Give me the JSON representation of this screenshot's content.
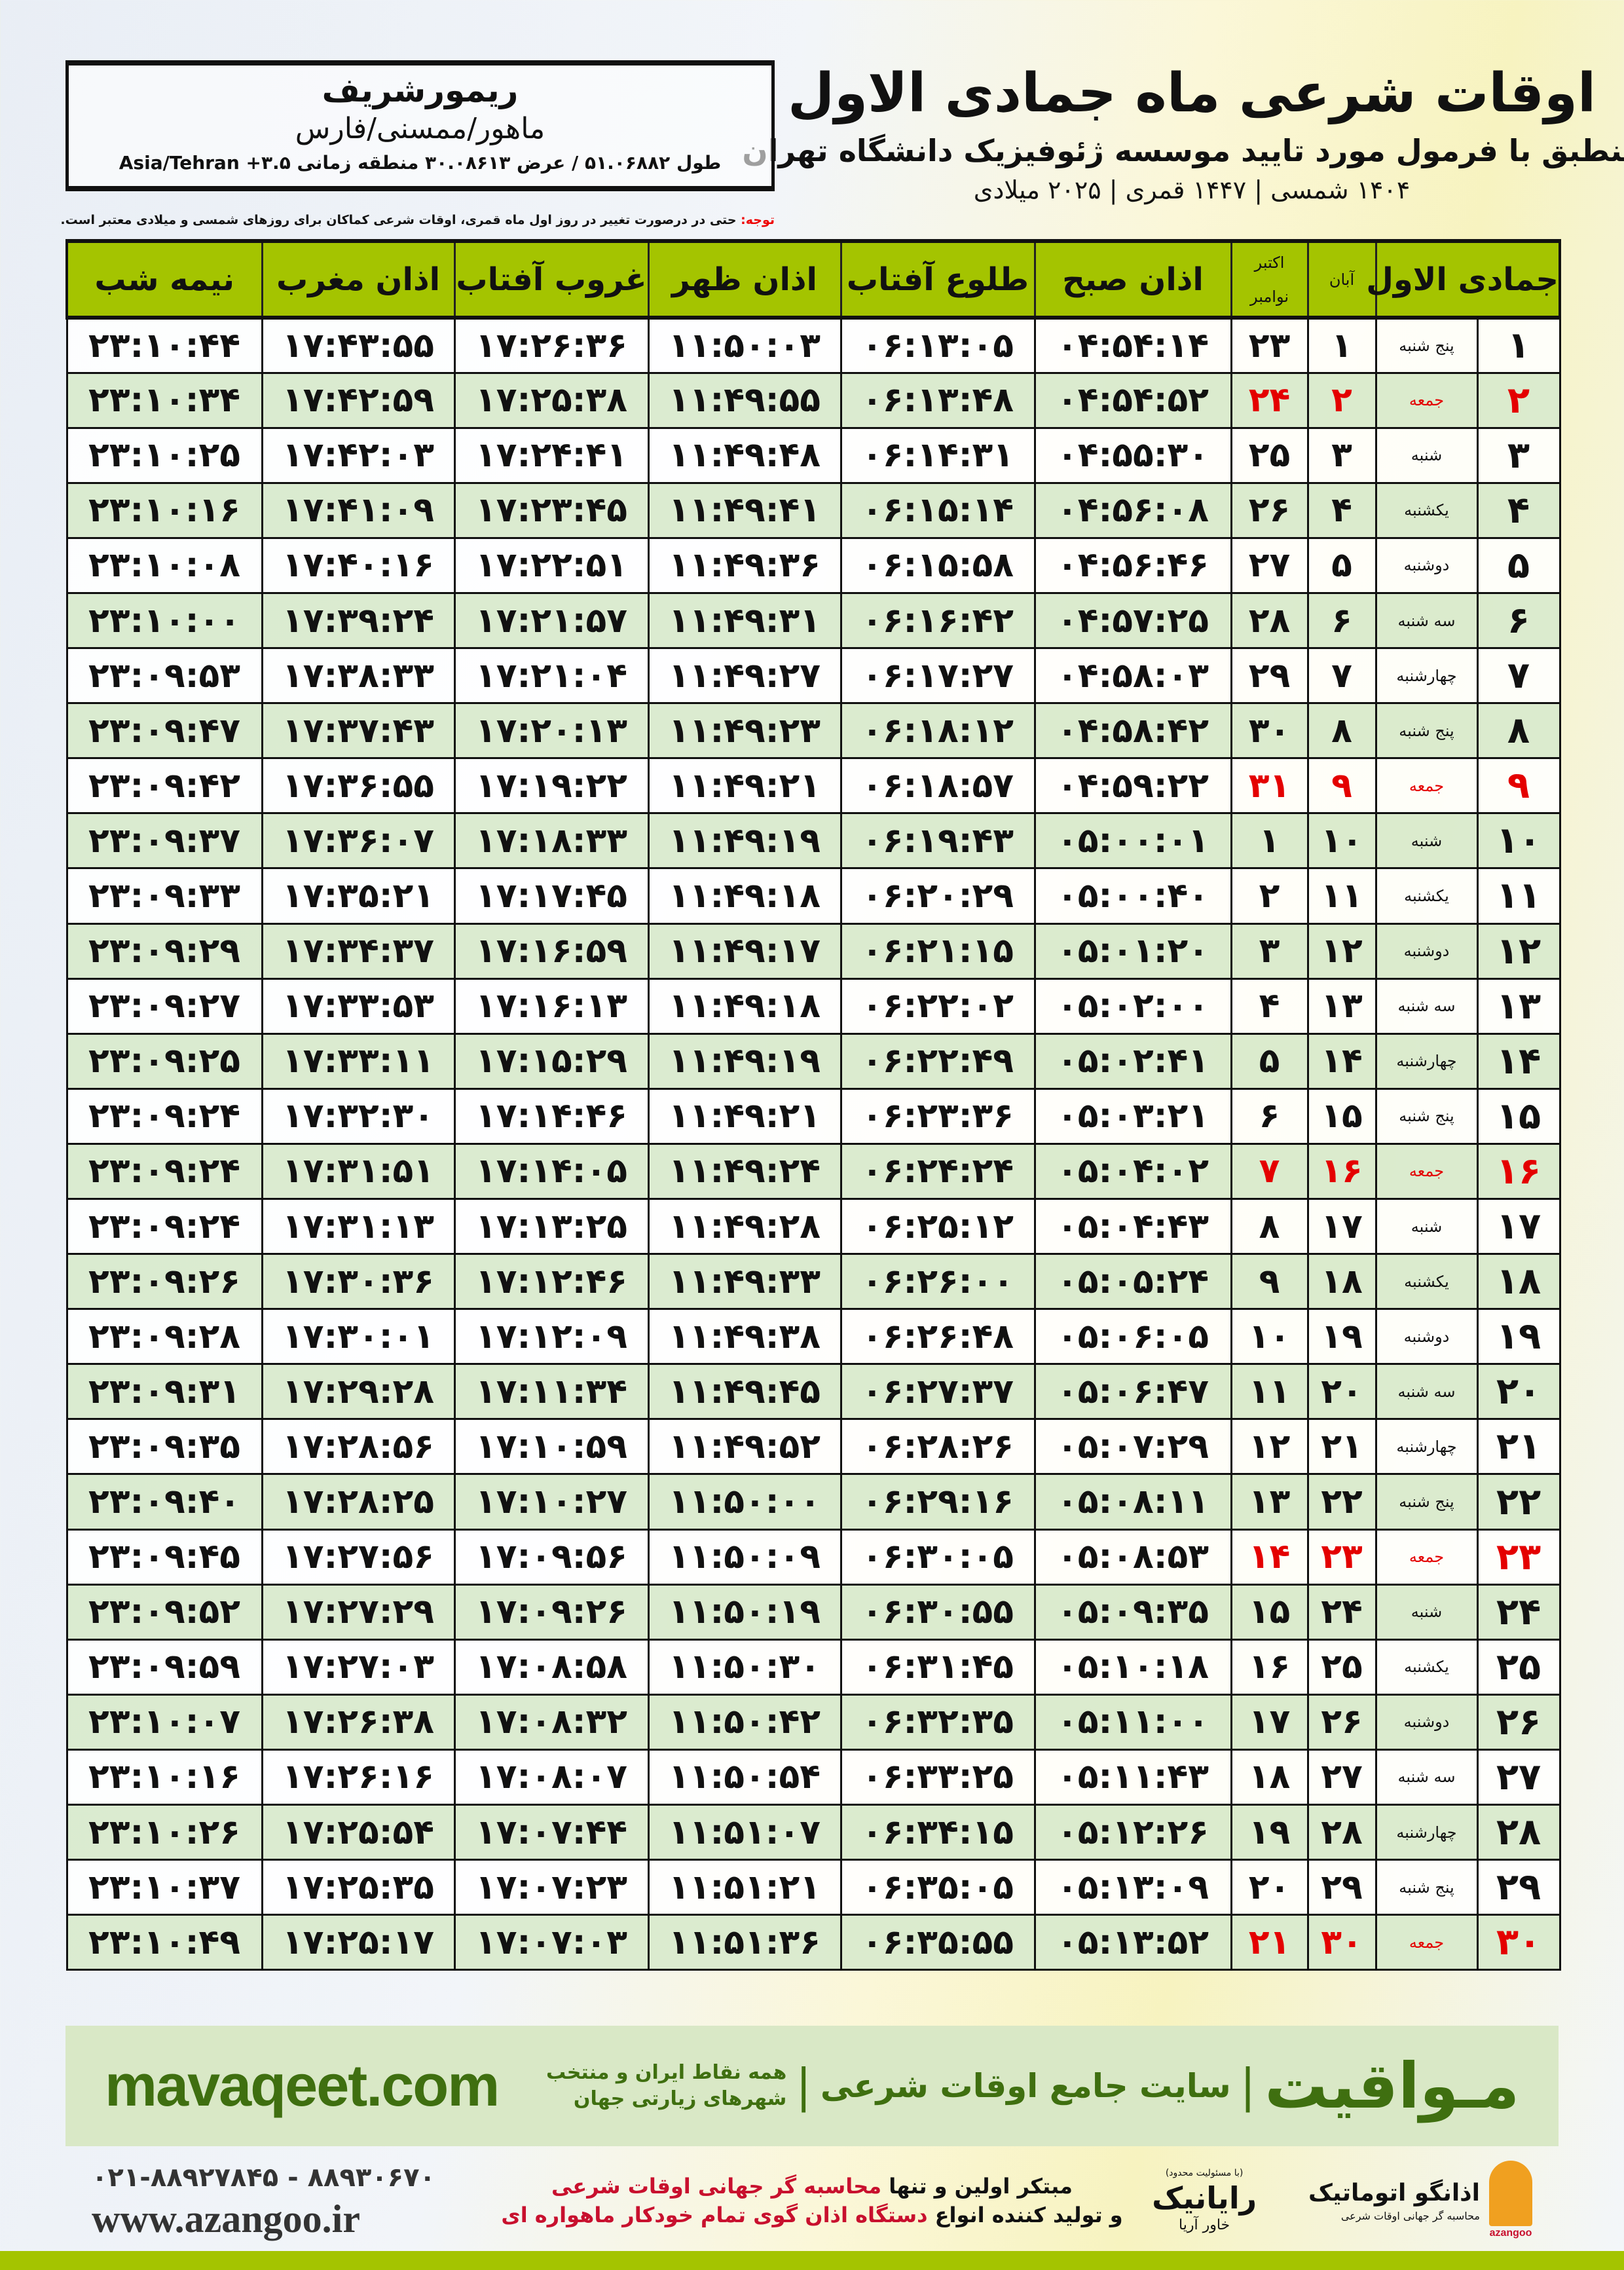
{
  "header": {
    "title": "اوقات شرعی ماه جمادی الاول",
    "subtitle": "منطبق با فرمول مورد تایید موسسه ژئوفیزیک دانشگاه تهران",
    "dates": "۱۴۰۴ شمسی | ۱۴۴۷ قمری | ۲۰۲۵ میلادی"
  },
  "location": {
    "city": "ریمورشریف",
    "region": "ماهور/ممسنی/فارس",
    "coords": "طول ۵۱.۰۶۸۸۲ / عرض ۳۰.۰۸۶۱۳ منطقه زمانی Asia/Tehran +۳.۵"
  },
  "note": {
    "label": "توجه:",
    "text": " حتی در درصورت تغییر در روز اول ماه قمری، اوقات شرعی کماکان برای روزهای شمسی و میلادی معتبر است."
  },
  "table": {
    "headers": {
      "hijri": "جمادی الاول",
      "aban": "آبان",
      "gregorian_top": "اکتبر",
      "gregorian_bottom": "نوامبر",
      "fajr": "اذان صبح",
      "sunrise": "طلوع آفتاب",
      "dhuhr": "اذان ظهر",
      "sunset": "غروب آفتاب",
      "maghrib": "اذان مغرب",
      "midnight": "نیمه شب"
    },
    "holiday_color": "#e40000",
    "rows": [
      {
        "d": "۱",
        "w": "پنج شنبه",
        "s": "۱",
        "g": "۲۳",
        "fajr": "۰۴:۵۴:۱۴",
        "sunrise": "۰۶:۱۳:۰۵",
        "dhuhr": "۱۱:۵۰:۰۳",
        "sunset": "۱۷:۲۶:۳۶",
        "maghrib": "۱۷:۴۳:۵۵",
        "midnight": "۲۳:۱۰:۴۴",
        "holiday": false
      },
      {
        "d": "۲",
        "w": "جمعه",
        "s": "۲",
        "g": "۲۴",
        "fajr": "۰۴:۵۴:۵۲",
        "sunrise": "۰۶:۱۳:۴۸",
        "dhuhr": "۱۱:۴۹:۵۵",
        "sunset": "۱۷:۲۵:۳۸",
        "maghrib": "۱۷:۴۲:۵۹",
        "midnight": "۲۳:۱۰:۳۴",
        "holiday": true
      },
      {
        "d": "۳",
        "w": "شنبه",
        "s": "۳",
        "g": "۲۵",
        "fajr": "۰۴:۵۵:۳۰",
        "sunrise": "۰۶:۱۴:۳۱",
        "dhuhr": "۱۱:۴۹:۴۸",
        "sunset": "۱۷:۲۴:۴۱",
        "maghrib": "۱۷:۴۲:۰۳",
        "midnight": "۲۳:۱۰:۲۵",
        "holiday": false
      },
      {
        "d": "۴",
        "w": "یکشنبه",
        "s": "۴",
        "g": "۲۶",
        "fajr": "۰۴:۵۶:۰۸",
        "sunrise": "۰۶:۱۵:۱۴",
        "dhuhr": "۱۱:۴۹:۴۱",
        "sunset": "۱۷:۲۳:۴۵",
        "maghrib": "۱۷:۴۱:۰۹",
        "midnight": "۲۳:۱۰:۱۶",
        "holiday": false
      },
      {
        "d": "۵",
        "w": "دوشنبه",
        "s": "۵",
        "g": "۲۷",
        "fajr": "۰۴:۵۶:۴۶",
        "sunrise": "۰۶:۱۵:۵۸",
        "dhuhr": "۱۱:۴۹:۳۶",
        "sunset": "۱۷:۲۲:۵۱",
        "maghrib": "۱۷:۴۰:۱۶",
        "midnight": "۲۳:۱۰:۰۸",
        "holiday": false
      },
      {
        "d": "۶",
        "w": "سه شنبه",
        "s": "۶",
        "g": "۲۸",
        "fajr": "۰۴:۵۷:۲۵",
        "sunrise": "۰۶:۱۶:۴۲",
        "dhuhr": "۱۱:۴۹:۳۱",
        "sunset": "۱۷:۲۱:۵۷",
        "maghrib": "۱۷:۳۹:۲۴",
        "midnight": "۲۳:۱۰:۰۰",
        "holiday": false
      },
      {
        "d": "۷",
        "w": "چهارشنبه",
        "s": "۷",
        "g": "۲۹",
        "fajr": "۰۴:۵۸:۰۳",
        "sunrise": "۰۶:۱۷:۲۷",
        "dhuhr": "۱۱:۴۹:۲۷",
        "sunset": "۱۷:۲۱:۰۴",
        "maghrib": "۱۷:۳۸:۳۳",
        "midnight": "۲۳:۰۹:۵۳",
        "holiday": false
      },
      {
        "d": "۸",
        "w": "پنج شنبه",
        "s": "۸",
        "g": "۳۰",
        "fajr": "۰۴:۵۸:۴۲",
        "sunrise": "۰۶:۱۸:۱۲",
        "dhuhr": "۱۱:۴۹:۲۳",
        "sunset": "۱۷:۲۰:۱۳",
        "maghrib": "۱۷:۳۷:۴۳",
        "midnight": "۲۳:۰۹:۴۷",
        "holiday": false
      },
      {
        "d": "۹",
        "w": "جمعه",
        "s": "۹",
        "g": "۳۱",
        "fajr": "۰۴:۵۹:۲۲",
        "sunrise": "۰۶:۱۸:۵۷",
        "dhuhr": "۱۱:۴۹:۲۱",
        "sunset": "۱۷:۱۹:۲۲",
        "maghrib": "۱۷:۳۶:۵۵",
        "midnight": "۲۳:۰۹:۴۲",
        "holiday": true
      },
      {
        "d": "۱۰",
        "w": "شنبه",
        "s": "۱۰",
        "g": "۱",
        "fajr": "۰۵:۰۰:۰۱",
        "sunrise": "۰۶:۱۹:۴۳",
        "dhuhr": "۱۱:۴۹:۱۹",
        "sunset": "۱۷:۱۸:۳۳",
        "maghrib": "۱۷:۳۶:۰۷",
        "midnight": "۲۳:۰۹:۳۷",
        "holiday": false
      },
      {
        "d": "۱۱",
        "w": "یکشنبه",
        "s": "۱۱",
        "g": "۲",
        "fajr": "۰۵:۰۰:۴۰",
        "sunrise": "۰۶:۲۰:۲۹",
        "dhuhr": "۱۱:۴۹:۱۸",
        "sunset": "۱۷:۱۷:۴۵",
        "maghrib": "۱۷:۳۵:۲۱",
        "midnight": "۲۳:۰۹:۳۳",
        "holiday": false
      },
      {
        "d": "۱۲",
        "w": "دوشنبه",
        "s": "۱۲",
        "g": "۳",
        "fajr": "۰۵:۰۱:۲۰",
        "sunrise": "۰۶:۲۱:۱۵",
        "dhuhr": "۱۱:۴۹:۱۷",
        "sunset": "۱۷:۱۶:۵۹",
        "maghrib": "۱۷:۳۴:۳۷",
        "midnight": "۲۳:۰۹:۲۹",
        "holiday": false
      },
      {
        "d": "۱۳",
        "w": "سه شنبه",
        "s": "۱۳",
        "g": "۴",
        "fajr": "۰۵:۰۲:۰۰",
        "sunrise": "۰۶:۲۲:۰۲",
        "dhuhr": "۱۱:۴۹:۱۸",
        "sunset": "۱۷:۱۶:۱۳",
        "maghrib": "۱۷:۳۳:۵۳",
        "midnight": "۲۳:۰۹:۲۷",
        "holiday": false
      },
      {
        "d": "۱۴",
        "w": "چهارشنبه",
        "s": "۱۴",
        "g": "۵",
        "fajr": "۰۵:۰۲:۴۱",
        "sunrise": "۰۶:۲۲:۴۹",
        "dhuhr": "۱۱:۴۹:۱۹",
        "sunset": "۱۷:۱۵:۲۹",
        "maghrib": "۱۷:۳۳:۱۱",
        "midnight": "۲۳:۰۹:۲۵",
        "holiday": false
      },
      {
        "d": "۱۵",
        "w": "پنج شنبه",
        "s": "۱۵",
        "g": "۶",
        "fajr": "۰۵:۰۳:۲۱",
        "sunrise": "۰۶:۲۳:۳۶",
        "dhuhr": "۱۱:۴۹:۲۱",
        "sunset": "۱۷:۱۴:۴۶",
        "maghrib": "۱۷:۳۲:۳۰",
        "midnight": "۲۳:۰۹:۲۴",
        "holiday": false
      },
      {
        "d": "۱۶",
        "w": "جمعه",
        "s": "۱۶",
        "g": "۷",
        "fajr": "۰۵:۰۴:۰۲",
        "sunrise": "۰۶:۲۴:۲۴",
        "dhuhr": "۱۱:۴۹:۲۴",
        "sunset": "۱۷:۱۴:۰۵",
        "maghrib": "۱۷:۳۱:۵۱",
        "midnight": "۲۳:۰۹:۲۴",
        "holiday": true
      },
      {
        "d": "۱۷",
        "w": "شنبه",
        "s": "۱۷",
        "g": "۸",
        "fajr": "۰۵:۰۴:۴۳",
        "sunrise": "۰۶:۲۵:۱۲",
        "dhuhr": "۱۱:۴۹:۲۸",
        "sunset": "۱۷:۱۳:۲۵",
        "maghrib": "۱۷:۳۱:۱۳",
        "midnight": "۲۳:۰۹:۲۴",
        "holiday": false
      },
      {
        "d": "۱۸",
        "w": "یکشنبه",
        "s": "۱۸",
        "g": "۹",
        "fajr": "۰۵:۰۵:۲۴",
        "sunrise": "۰۶:۲۶:۰۰",
        "dhuhr": "۱۱:۴۹:۳۳",
        "sunset": "۱۷:۱۲:۴۶",
        "maghrib": "۱۷:۳۰:۳۶",
        "midnight": "۲۳:۰۹:۲۶",
        "holiday": false
      },
      {
        "d": "۱۹",
        "w": "دوشنبه",
        "s": "۱۹",
        "g": "۱۰",
        "fajr": "۰۵:۰۶:۰۵",
        "sunrise": "۰۶:۲۶:۴۸",
        "dhuhr": "۱۱:۴۹:۳۸",
        "sunset": "۱۷:۱۲:۰۹",
        "maghrib": "۱۷:۳۰:۰۱",
        "midnight": "۲۳:۰۹:۲۸",
        "holiday": false
      },
      {
        "d": "۲۰",
        "w": "سه شنبه",
        "s": "۲۰",
        "g": "۱۱",
        "fajr": "۰۵:۰۶:۴۷",
        "sunrise": "۰۶:۲۷:۳۷",
        "dhuhr": "۱۱:۴۹:۴۵",
        "sunset": "۱۷:۱۱:۳۴",
        "maghrib": "۱۷:۲۹:۲۸",
        "midnight": "۲۳:۰۹:۳۱",
        "holiday": false
      },
      {
        "d": "۲۱",
        "w": "چهارشنبه",
        "s": "۲۱",
        "g": "۱۲",
        "fajr": "۰۵:۰۷:۲۹",
        "sunrise": "۰۶:۲۸:۲۶",
        "dhuhr": "۱۱:۴۹:۵۲",
        "sunset": "۱۷:۱۰:۵۹",
        "maghrib": "۱۷:۲۸:۵۶",
        "midnight": "۲۳:۰۹:۳۵",
        "holiday": false
      },
      {
        "d": "۲۲",
        "w": "پنج شنبه",
        "s": "۲۲",
        "g": "۱۳",
        "fajr": "۰۵:۰۸:۱۱",
        "sunrise": "۰۶:۲۹:۱۶",
        "dhuhr": "۱۱:۵۰:۰۰",
        "sunset": "۱۷:۱۰:۲۷",
        "maghrib": "۱۷:۲۸:۲۵",
        "midnight": "۲۳:۰۹:۴۰",
        "holiday": false
      },
      {
        "d": "۲۳",
        "w": "جمعه",
        "s": "۲۳",
        "g": "۱۴",
        "fajr": "۰۵:۰۸:۵۳",
        "sunrise": "۰۶:۳۰:۰۵",
        "dhuhr": "۱۱:۵۰:۰۹",
        "sunset": "۱۷:۰۹:۵۶",
        "maghrib": "۱۷:۲۷:۵۶",
        "midnight": "۲۳:۰۹:۴۵",
        "holiday": true
      },
      {
        "d": "۲۴",
        "w": "شنبه",
        "s": "۲۴",
        "g": "۱۵",
        "fajr": "۰۵:۰۹:۳۵",
        "sunrise": "۰۶:۳۰:۵۵",
        "dhuhr": "۱۱:۵۰:۱۹",
        "sunset": "۱۷:۰۹:۲۶",
        "maghrib": "۱۷:۲۷:۲۹",
        "midnight": "۲۳:۰۹:۵۲",
        "holiday": false
      },
      {
        "d": "۲۵",
        "w": "یکشنبه",
        "s": "۲۵",
        "g": "۱۶",
        "fajr": "۰۵:۱۰:۱۸",
        "sunrise": "۰۶:۳۱:۴۵",
        "dhuhr": "۱۱:۵۰:۳۰",
        "sunset": "۱۷:۰۸:۵۸",
        "maghrib": "۱۷:۲۷:۰۳",
        "midnight": "۲۳:۰۹:۵۹",
        "holiday": false
      },
      {
        "d": "۲۶",
        "w": "دوشنبه",
        "s": "۲۶",
        "g": "۱۷",
        "fajr": "۰۵:۱۱:۰۰",
        "sunrise": "۰۶:۳۲:۳۵",
        "dhuhr": "۱۱:۵۰:۴۲",
        "sunset": "۱۷:۰۸:۳۲",
        "maghrib": "۱۷:۲۶:۳۸",
        "midnight": "۲۳:۱۰:۰۷",
        "holiday": false
      },
      {
        "d": "۲۷",
        "w": "سه شنبه",
        "s": "۲۷",
        "g": "۱۸",
        "fajr": "۰۵:۱۱:۴۳",
        "sunrise": "۰۶:۳۳:۲۵",
        "dhuhr": "۱۱:۵۰:۵۴",
        "sunset": "۱۷:۰۸:۰۷",
        "maghrib": "۱۷:۲۶:۱۶",
        "midnight": "۲۳:۱۰:۱۶",
        "holiday": false
      },
      {
        "d": "۲۸",
        "w": "چهارشنبه",
        "s": "۲۸",
        "g": "۱۹",
        "fajr": "۰۵:۱۲:۲۶",
        "sunrise": "۰۶:۳۴:۱۵",
        "dhuhr": "۱۱:۵۱:۰۷",
        "sunset": "۱۷:۰۷:۴۴",
        "maghrib": "۱۷:۲۵:۵۴",
        "midnight": "۲۳:۱۰:۲۶",
        "holiday": false
      },
      {
        "d": "۲۹",
        "w": "پنج شنبه",
        "s": "۲۹",
        "g": "۲۰",
        "fajr": "۰۵:۱۳:۰۹",
        "sunrise": "۰۶:۳۵:۰۵",
        "dhuhr": "۱۱:۵۱:۲۱",
        "sunset": "۱۷:۰۷:۲۳",
        "maghrib": "۱۷:۲۵:۳۵",
        "midnight": "۲۳:۱۰:۳۷",
        "holiday": false
      },
      {
        "d": "۳۰",
        "w": "جمعه",
        "s": "۳۰",
        "g": "۲۱",
        "fajr": "۰۵:۱۳:۵۲",
        "sunrise": "۰۶:۳۵:۵۵",
        "dhuhr": "۱۱:۵۱:۳۶",
        "sunset": "۱۷:۰۷:۰۳",
        "maghrib": "۱۷:۲۵:۱۷",
        "midnight": "۲۳:۱۰:۴۹",
        "holiday": true
      }
    ]
  },
  "footer": {
    "brand": "مـواقیت",
    "separator": "|",
    "tagline": "سایت جامع اوقات شرعی",
    "tagline2": "همه نقاط ایران و منتخب شهرهای زیارتی جهان",
    "site": "mavaqeet.com",
    "phone": "۰۲۱-۸۸۹۲۷۸۴۵ - ۸۸۹۳۰۶۷۰",
    "web": "www.azangoo.ir",
    "ad_line1_a": "مبتکر اولین و تنها ",
    "ad_line1_b": "محاسبه گر جهانی اوقات شرعی",
    "ad_line2_a": "و تولید کننده انواع ",
    "ad_line2_b": "دستگاه اذان گوی تمام خودکار ماهواره ای",
    "logo_rayanik": "رایانیک",
    "logo_rayanik_small": "خاور آریا",
    "logo_rayanik_tiny": "(با مسئولیت محدود)",
    "logo_azangoo": "اذانگو اتوماتیک",
    "logo_azangoo_sub": "محاسبه گر جهانی اوقات شرعی",
    "logo_azangoo_en": "azangoo",
    "accent_color": "#a4c400",
    "band_color": "#d9e8c6"
  }
}
